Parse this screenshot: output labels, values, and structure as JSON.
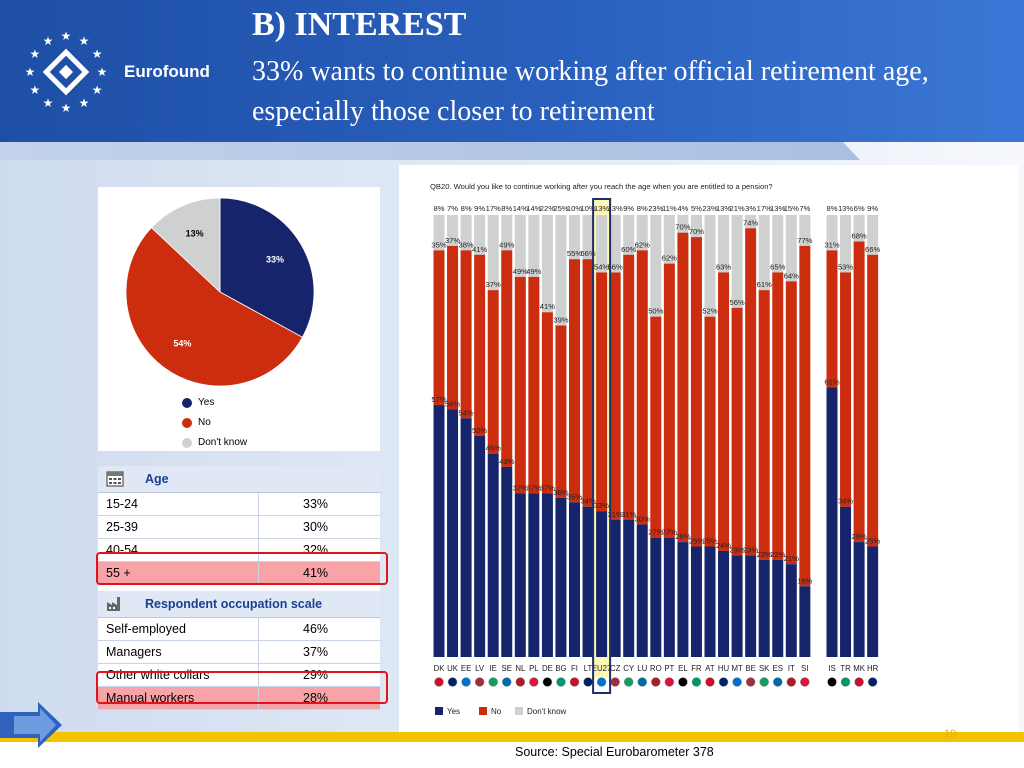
{
  "header": {
    "logo_text": "Eurofound",
    "title": "B) INTEREST",
    "subtitle": "33% wants to continue working after official retirement age, especially those closer to retirement"
  },
  "pie": {
    "slices": [
      {
        "label": "Yes",
        "value": 33,
        "text": "33%",
        "color": "#16256b"
      },
      {
        "label": "No",
        "value": 54,
        "text": "54%",
        "color": "#cc2d0e"
      },
      {
        "label": "Don't know",
        "value": 13,
        "text": "13%",
        "color": "#cfd0d0"
      }
    ]
  },
  "table": {
    "age_header": "Age",
    "age_rows": [
      {
        "label": "15-24",
        "value": "33%"
      },
      {
        "label": "25-39",
        "value": "30%"
      },
      {
        "label": "40-54",
        "value": "32%"
      },
      {
        "label": "55 +",
        "value": "41%"
      }
    ],
    "occ_header": "Respondent occupation scale",
    "occ_rows": [
      {
        "label": "Self-employed",
        "value": "46%"
      },
      {
        "label": "Managers",
        "value": "37%"
      },
      {
        "label": "Other white collars",
        "value": "29%"
      },
      {
        "label": "Manual workers",
        "value": "28%"
      }
    ]
  },
  "chart_data": {
    "type": "bar",
    "stacked": true,
    "question": "QB20. Would you like to continue working after you reach the age when you are entitled to a pension?",
    "categories": [
      "DK",
      "UK",
      "EE",
      "LV",
      "IE",
      "SE",
      "NL",
      "PL",
      "DE",
      "BG",
      "FI",
      "LT",
      "EU27",
      "CZ",
      "CY",
      "LU",
      "RO",
      "PT",
      "EL",
      "FR",
      "AT",
      "HU",
      "MT",
      "BE",
      "SK",
      "ES",
      "IT",
      "SI",
      "IS",
      "TR",
      "MK",
      "HR"
    ],
    "series": [
      {
        "name": "Yes",
        "color": "#16256b",
        "values": [
          57,
          56,
          54,
          50,
          46,
          43,
          37,
          37,
          37,
          36,
          35,
          34,
          33,
          31,
          31,
          30,
          27,
          27,
          26,
          25,
          25,
          24,
          23,
          23,
          22,
          22,
          21,
          16,
          61,
          34,
          26,
          25
        ]
      },
      {
        "name": "No",
        "color": "#cc2d0e",
        "values": [
          35,
          37,
          38,
          41,
          37,
          49,
          49,
          49,
          41,
          39,
          55,
          56,
          54,
          56,
          60,
          62,
          50,
          62,
          70,
          70,
          52,
          63,
          56,
          74,
          61,
          65,
          64,
          77,
          31,
          53,
          68,
          66
        ]
      },
      {
        "name": "Don't know",
        "color": "#cfd0d0",
        "values": [
          8,
          7,
          8,
          9,
          17,
          8,
          14,
          14,
          22,
          25,
          10,
          10,
          13,
          13,
          9,
          8,
          23,
          11,
          4,
          5,
          23,
          13,
          21,
          3,
          17,
          13,
          15,
          7,
          8,
          13,
          6,
          9
        ]
      }
    ],
    "highlight_category": "EU27",
    "ylim": [
      0,
      100
    ],
    "legend_position": "bottom-left"
  },
  "footer": {
    "source": "Source: Special Eurobarometer 378",
    "page": "19"
  }
}
